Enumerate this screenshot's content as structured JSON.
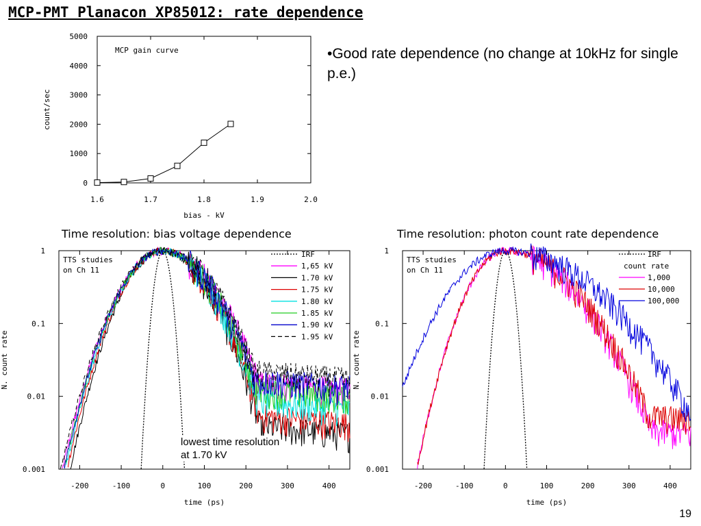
{
  "slide": {
    "title": "MCP-PMT Planacon XP85012: rate dependence",
    "bullet": "•Good rate dependence (no change at 10kHz for single p.e.)",
    "caption_left": "Time resolution: bias voltage dependence",
    "caption_right": "Time resolution: photon count rate dependence",
    "page_number": "19",
    "annotation_line1": "lowest time resolution",
    "annotation_line2": "at 1.70 kV"
  },
  "chart_data": [
    {
      "type": "line",
      "title": "MCP gain curve",
      "xlabel": "bias - kV",
      "ylabel": "count/sec",
      "xlim": [
        1.6,
        2.0
      ],
      "ylim": [
        0,
        5000
      ],
      "xticks": [
        "1.6",
        "1.7",
        "1.8",
        "1.9",
        "2.0"
      ],
      "yticks": [
        "0",
        "1000",
        "2000",
        "3000",
        "4000",
        "5000"
      ],
      "series": [
        {
          "x": [
            1.6,
            1.65,
            1.7,
            1.75,
            1.8,
            1.85
          ],
          "y": [
            10,
            30,
            150,
            580,
            1370,
            2010
          ],
          "marker": "square",
          "color": "#000000"
        }
      ]
    },
    {
      "type": "line",
      "annotation": "TTS studies\non Ch 11",
      "xlabel": "time (ps)",
      "ylabel": "N. count rate",
      "xlim": [
        -250,
        450
      ],
      "ylim": [
        0.001,
        1
      ],
      "yscale": "log",
      "xticks": [
        "-200",
        "-100",
        "0",
        "100",
        "200",
        "300",
        "400"
      ],
      "yticks": [
        "0.001",
        "0.01",
        "0.1",
        "1"
      ],
      "legend_position": "top-right",
      "series": [
        {
          "name": "IRF",
          "color": "#000000",
          "dash": true,
          "sigma_l": 14,
          "sigma_r": 14,
          "tail": 0
        },
        {
          "name": "1,65 kV",
          "color": "#ff00ff",
          "sigma_l": 65,
          "sigma_r": 80,
          "tail": 0.02
        },
        {
          "name": "1.70 kV",
          "color": "#000000",
          "sigma_l": 60,
          "sigma_r": 70,
          "tail": 0.005
        },
        {
          "name": "1.75 kV",
          "color": "#dd0000",
          "sigma_l": 62,
          "sigma_r": 72,
          "tail": 0.007
        },
        {
          "name": "1.80 kV",
          "color": "#00e0e0",
          "sigma_l": 63,
          "sigma_r": 74,
          "tail": 0.011
        },
        {
          "name": "1.85 kV",
          "color": "#22cc22",
          "sigma_l": 64,
          "sigma_r": 76,
          "tail": 0.016
        },
        {
          "name": "1.90 kV",
          "color": "#0000cc",
          "sigma_l": 64,
          "sigma_r": 78,
          "tail": 0.022
        },
        {
          "name": "1.95 kV",
          "color": "#000000",
          "dash": true,
          "sigma_l": 66,
          "sigma_r": 80,
          "tail": 0.028
        }
      ]
    },
    {
      "type": "line",
      "annotation": "TTS studies\non Ch 11",
      "legend_title": "count rate",
      "xlabel": "time (ps)",
      "ylabel": "N. count rate",
      "xlim": [
        -250,
        450
      ],
      "ylim": [
        0.001,
        1
      ],
      "yscale": "log",
      "xticks": [
        "-200",
        "-100",
        "0",
        "100",
        "200",
        "300",
        "400"
      ],
      "yticks": [
        "0.001",
        "0.01",
        "0.1",
        "1"
      ],
      "legend_position": "top-right",
      "series": [
        {
          "name": "IRF",
          "color": "#000000",
          "dash": true,
          "sigma_l": 14,
          "sigma_r": 14,
          "tail": 0
        },
        {
          "name": "1,000",
          "color": "#ff00ff",
          "sigma_l": 58,
          "sigma_r": 105,
          "tail": 0.005
        },
        {
          "name": "10,000",
          "color": "#dd0000",
          "sigma_l": 58,
          "sigma_r": 108,
          "tail": 0.008
        },
        {
          "name": "100,000",
          "color": "#0000dd",
          "sigma_l": 85,
          "sigma_r": 140,
          "tail": 0.01
        }
      ]
    }
  ]
}
